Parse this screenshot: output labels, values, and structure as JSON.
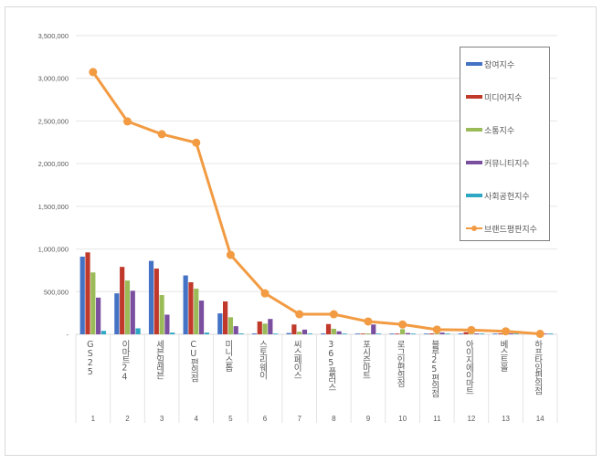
{
  "chart_data": {
    "type": "bar+line",
    "title": "",
    "xlabel": "",
    "ylabel": "",
    "ylim": [
      0,
      3500000
    ],
    "yticks": [
      "-",
      "500,000",
      "1,000,000",
      "1,500,000",
      "2,000,000",
      "2,500,000",
      "3,000,000",
      "3,500,000"
    ],
    "grid": true,
    "legend_position": "right",
    "categories": [
      "GS25",
      "이마트24",
      "세븐일레븐",
      "CU편의점",
      "미니스톱",
      "스토리웨이",
      "씨스페이스",
      "365플러스",
      "포시즌마트",
      "로그인편의점",
      "블루25편의점",
      "아이지에이마트",
      "베스트올",
      "하프타임편의점"
    ],
    "rank_labels": [
      "1",
      "2",
      "3",
      "4",
      "5",
      "6",
      "7",
      "8",
      "9",
      "10",
      "11",
      "12",
      "13",
      "14"
    ],
    "series": [
      {
        "name": "참여지수",
        "type": "bar",
        "color": "#4472c4",
        "values": [
          910000,
          480000,
          860000,
          690000,
          245000,
          10000,
          15000,
          10000,
          5000,
          5000,
          5000,
          5000,
          5000,
          2000
        ]
      },
      {
        "name": "미디어지수",
        "type": "bar",
        "color": "#c0392b",
        "values": [
          960000,
          790000,
          770000,
          610000,
          385000,
          150000,
          115000,
          120000,
          8000,
          5000,
          10000,
          25000,
          10000,
          2000
        ]
      },
      {
        "name": "소통지수",
        "type": "bar",
        "color": "#9bbb59",
        "values": [
          725000,
          630000,
          460000,
          535000,
          200000,
          125000,
          30000,
          65000,
          10000,
          60000,
          10000,
          5000,
          5000,
          1000
        ]
      },
      {
        "name": "커뮤니티지수",
        "type": "bar",
        "color": "#7b4fa0",
        "values": [
          430000,
          510000,
          230000,
          395000,
          95000,
          180000,
          55000,
          35000,
          115000,
          15000,
          20000,
          10000,
          10000,
          1000
        ]
      },
      {
        "name": "사회공헌지수",
        "type": "bar",
        "color": "#2ea7c4",
        "values": [
          40000,
          70000,
          20000,
          20000,
          10000,
          3000,
          5000,
          3000,
          2000,
          2000,
          2000,
          2000,
          2000,
          1000
        ]
      },
      {
        "name": "브랜드평판지수",
        "type": "line",
        "color": "#f29b42",
        "values": [
          3073000,
          2495000,
          2345000,
          2245000,
          930000,
          480000,
          235000,
          235000,
          150000,
          115000,
          55000,
          50000,
          35000,
          5000
        ]
      }
    ]
  }
}
